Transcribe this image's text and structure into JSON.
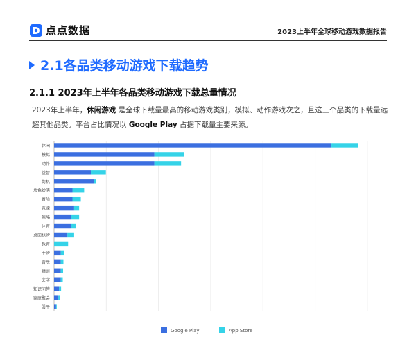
{
  "header": {
    "logo_text": "点点数据",
    "report_title": "2023上半年全球移动游戏数据报告"
  },
  "section": {
    "title": "2.1各品类移动游戏下载趋势"
  },
  "subsection": {
    "title": "2.1.1  2023年上半年各品类移动游戏下载总量情况"
  },
  "body": {
    "part1": "2023年上半年，",
    "highlight1": "休闲游戏",
    "part2": " 是全球下载量最高的移动游戏类别，模拟、动作游戏次之，且这三个品类的下载量远超其他品类。平台占比情况以 ",
    "highlight2": "Google Play",
    "part3": " 占据下载量主要来源。"
  },
  "colors": {
    "google_play": "#3b6fe0",
    "app_store": "#35d3e8",
    "accent": "#1f6bff"
  },
  "chart_data": {
    "type": "bar",
    "orientation": "horizontal",
    "stacked": true,
    "categories": [
      "休闲",
      "模拟",
      "动作",
      "益智",
      "街机",
      "角色扮演",
      "冒险",
      "竞速",
      "策略",
      "体育",
      "桌面棋牌",
      "教育",
      "卡牌",
      "音乐",
      "猜谜",
      "文字",
      "知识问答",
      "家庭聚会",
      "骰子"
    ],
    "series": [
      {
        "name": "Google Play",
        "values": [
          83,
          30,
          30,
          11,
          12,
          5.5,
          5.5,
          6,
          5,
          5,
          4,
          0,
          2,
          2,
          2,
          2,
          1.5,
          1.3,
          0.6
        ]
      },
      {
        "name": "App Store",
        "values": [
          8,
          9,
          8,
          4.5,
          0.5,
          3.5,
          2.5,
          1.5,
          2.5,
          1.5,
          2,
          4.2,
          1,
          0.8,
          0.7,
          0.6,
          0.6,
          0.4,
          0.2
        ]
      }
    ],
    "xlim": [
      0,
      100
    ],
    "grid": true,
    "legend": "bottom"
  }
}
